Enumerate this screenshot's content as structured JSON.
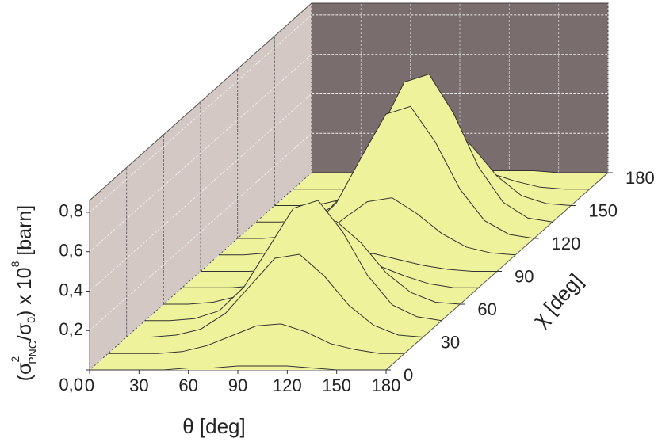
{
  "chart_data": {
    "type": "surface",
    "xlabel": "θ [deg]",
    "ylabel": "χ [deg]",
    "zlabel": {
      "open": "(σ",
      "sup": "2",
      "sub": "PNC",
      "mid": "/σ",
      "sub2": "0",
      "close": ") x 10",
      "exp": "8",
      "unit": " [barn]"
    },
    "x": [
      0,
      15,
      30,
      45,
      60,
      75,
      90,
      105,
      120,
      135,
      150,
      165,
      180
    ],
    "y": [
      0,
      15,
      30,
      45,
      60,
      75,
      90,
      105,
      120,
      135,
      150,
      165,
      180
    ],
    "z": [
      [
        0,
        0,
        0,
        0,
        0.01,
        0.01,
        0.02,
        0.02,
        0.02,
        0.01,
        0,
        0,
        0
      ],
      [
        0,
        0,
        0,
        0.01,
        0.04,
        0.09,
        0.14,
        0.15,
        0.11,
        0.05,
        0.02,
        0,
        0
      ],
      [
        0,
        0,
        0.01,
        0.04,
        0.12,
        0.26,
        0.4,
        0.42,
        0.31,
        0.16,
        0.06,
        0.01,
        0
      ],
      [
        0,
        0,
        0.01,
        0.05,
        0.17,
        0.37,
        0.57,
        0.61,
        0.45,
        0.23,
        0.08,
        0.02,
        0
      ],
      [
        0,
        0,
        0.01,
        0.04,
        0.12,
        0.26,
        0.4,
        0.42,
        0.31,
        0.16,
        0.06,
        0.01,
        0
      ],
      [
        0,
        0,
        0,
        0.01,
        0.04,
        0.09,
        0.14,
        0.15,
        0.11,
        0.06,
        0.02,
        0,
        0
      ],
      [
        0,
        0,
        0,
        0.01,
        0.02,
        0.05,
        0.08,
        0.09,
        0.06,
        0.03,
        0.01,
        0,
        0
      ],
      [
        0,
        0,
        0.01,
        0.03,
        0.08,
        0.18,
        0.27,
        0.29,
        0.21,
        0.11,
        0.04,
        0.01,
        0
      ],
      [
        0,
        0,
        0.01,
        0.06,
        0.18,
        0.41,
        0.63,
        0.67,
        0.49,
        0.25,
        0.09,
        0.02,
        0
      ],
      [
        0,
        0,
        0.01,
        0.07,
        0.21,
        0.46,
        0.71,
        0.75,
        0.55,
        0.28,
        0.1,
        0.02,
        0
      ],
      [
        0,
        0,
        0.01,
        0.04,
        0.11,
        0.25,
        0.39,
        0.41,
        0.3,
        0.15,
        0.05,
        0.01,
        0
      ],
      [
        0,
        0,
        0,
        0.01,
        0.03,
        0.07,
        0.1,
        0.11,
        0.08,
        0.04,
        0.01,
        0,
        0
      ],
      [
        0,
        0,
        0,
        0,
        0,
        0.01,
        0.01,
        0.01,
        0.01,
        0.01,
        0,
        0,
        0
      ]
    ],
    "xlim": [
      0,
      180
    ],
    "ylim": [
      0,
      180
    ],
    "zlim": [
      0,
      0.86
    ],
    "xticks": [
      0,
      30,
      60,
      90,
      120,
      150,
      180
    ],
    "yticks": [
      0,
      30,
      60,
      90,
      120,
      150,
      180
    ],
    "zticks": [
      {
        "value": 0,
        "label": "0,0"
      },
      {
        "value": 0.2,
        "label": "0,2"
      },
      {
        "value": 0.4,
        "label": "0,4"
      },
      {
        "value": 0.6,
        "label": "0,6"
      },
      {
        "value": 0.8,
        "label": "0,8"
      }
    ],
    "color": "#eef29a",
    "grid": true
  }
}
